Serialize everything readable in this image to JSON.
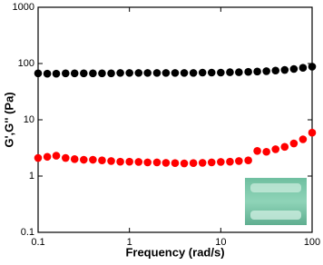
{
  "chart_data": {
    "type": "scatter",
    "xlabel": "Frequency (rad/s)",
    "ylabel": "G',G'' (Pa)",
    "xscale": "log",
    "yscale": "log",
    "xlim": [
      0.1,
      100
    ],
    "ylim": [
      0.1,
      1000
    ],
    "xticks": [
      0.1,
      1,
      10,
      100
    ],
    "yticks": [
      0.1,
      1,
      10,
      100,
      1000
    ],
    "x": [
      0.1,
      0.126,
      0.158,
      0.2,
      0.251,
      0.316,
      0.398,
      0.501,
      0.631,
      0.794,
      1,
      1.26,
      1.58,
      2,
      2.51,
      3.16,
      3.98,
      5.01,
      6.31,
      7.94,
      10,
      12.6,
      15.8,
      20,
      25.1,
      31.6,
      39.8,
      50.1,
      63.1,
      79.4,
      100
    ],
    "series": [
      {
        "color": "#000000",
        "values": [
          67,
          66,
          66,
          67,
          67,
          67,
          67,
          67,
          67,
          68,
          68,
          68,
          68,
          68,
          68,
          68,
          68,
          68,
          69,
          69,
          69,
          70,
          70,
          71,
          72,
          73,
          75,
          77,
          80,
          84,
          88
        ]
      },
      {
        "color": "#ff0000",
        "values": [
          2.1,
          2.2,
          2.3,
          2.1,
          2.0,
          1.95,
          1.95,
          1.9,
          1.85,
          1.8,
          1.8,
          1.78,
          1.75,
          1.75,
          1.72,
          1.7,
          1.68,
          1.7,
          1.72,
          1.75,
          1.78,
          1.8,
          1.85,
          1.9,
          2.8,
          2.7,
          3.0,
          3.3,
          3.8,
          4.5,
          5.9
        ]
      }
    ]
  }
}
